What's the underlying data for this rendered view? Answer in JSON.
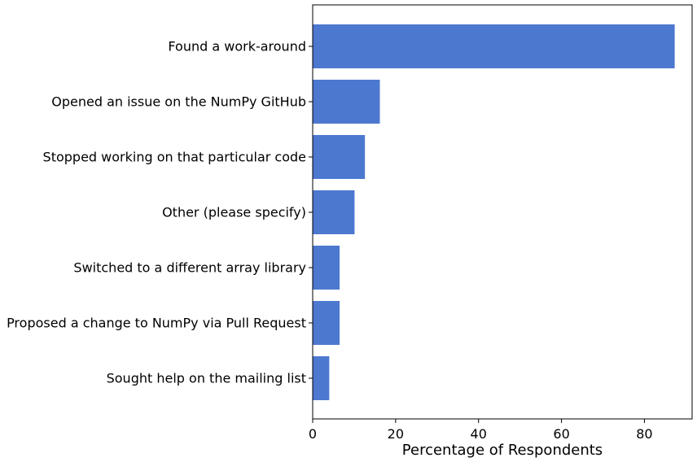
{
  "chart_data": {
    "type": "bar",
    "orientation": "horizontal",
    "categories": [
      "Found a work-around",
      "Opened an issue on the NumPy GitHub",
      "Stopped working on that particular code",
      "Other (please specify)",
      "Switched to a different array library",
      "Proposed a change to NumPy via Pull Request",
      "Sought help on the mailing list"
    ],
    "values": [
      87.3,
      16.2,
      12.6,
      10.1,
      6.5,
      6.5,
      4.0
    ],
    "xlabel": "Percentage of Respondents",
    "ylabel": "",
    "xlim": [
      0,
      91.5
    ],
    "xticks": [
      0,
      20,
      40,
      60,
      80
    ],
    "xtick_labels": [
      "0",
      "20",
      "40",
      "60",
      "80"
    ],
    "bar_color": "#4c78d0",
    "grid": false
  }
}
